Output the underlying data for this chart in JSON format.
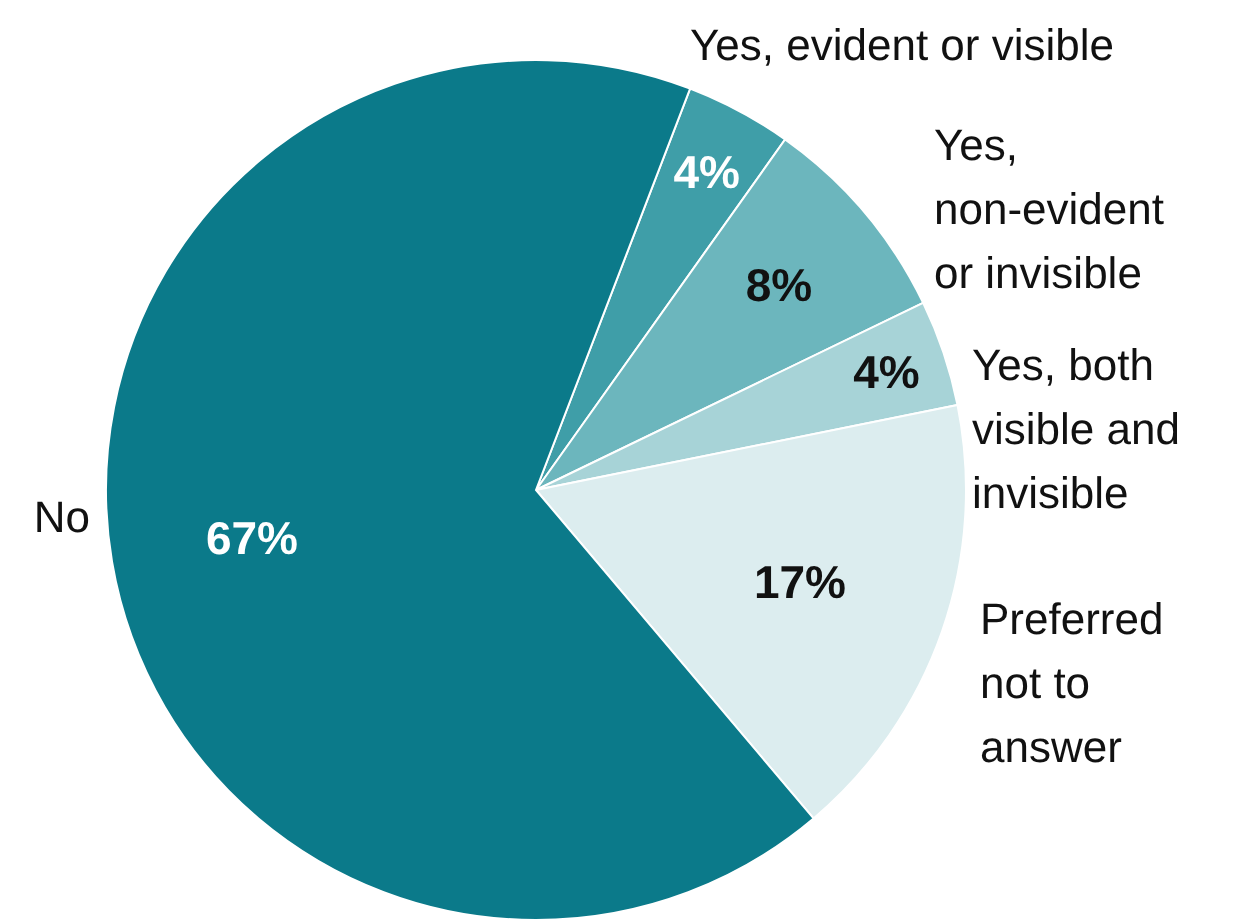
{
  "chart_data": {
    "type": "pie",
    "categories": [
      "Yes, evident or visible",
      "Yes, non-evident or invisible",
      "Yes, both visible and invisible",
      "Preferred not to answer",
      "No"
    ],
    "values": [
      4,
      8,
      4,
      17,
      67
    ],
    "value_labels": [
      "4%",
      "8%",
      "4%",
      "17%",
      "67%"
    ],
    "colors": [
      "#3f9ea8",
      "#6cb6bd",
      "#a7d3d7",
      "#dcedef",
      "#0b7a8a"
    ]
  }
}
